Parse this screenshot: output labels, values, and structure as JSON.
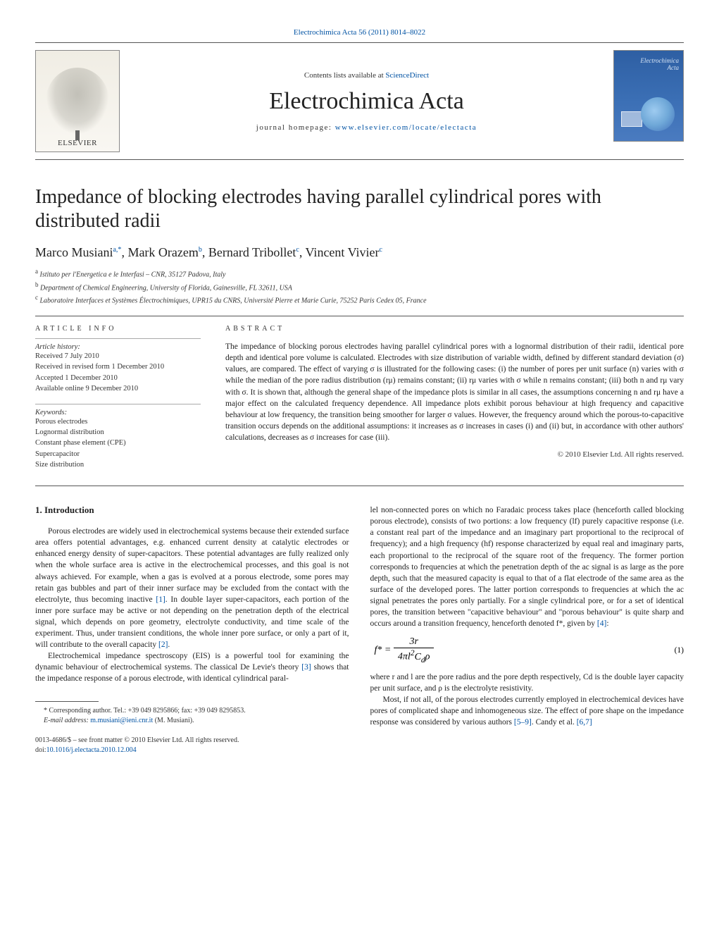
{
  "header": {
    "top_reference": "Electrochimica Acta 56 (2011) 8014–8022",
    "contents_prefix": "Contents lists available at ",
    "contents_link": "ScienceDirect",
    "journal_title": "Electrochimica Acta",
    "homepage_prefix": "journal homepage: ",
    "homepage_link": "www.elsevier.com/locate/electacta",
    "publisher_logo": "ELSEVIER",
    "cover_label1": "Electrochimica",
    "cover_label2": "Acta"
  },
  "article": {
    "title": "Impedance of blocking electrodes having parallel cylindrical pores with distributed radii",
    "authors_html": "Marco Musiani<sup>a,*</sup>, Mark Orazem<sup>b</sup>, Bernard Tribollet<sup>c</sup>, Vincent Vivier<sup>c</sup>",
    "affiliations": [
      {
        "sup": "a",
        "text": "Istituto per l'Energetica e le Interfasi – CNR, 35127 Padova, Italy"
      },
      {
        "sup": "b",
        "text": "Department of Chemical Engineering, University of Florida, Gainesville, FL 32611, USA"
      },
      {
        "sup": "c",
        "text": "Laboratoire Interfaces et Systèmes Électrochimiques, UPR15 du CNRS, Université Pierre et Marie Curie, 75252 Paris Cedex 05, France"
      }
    ]
  },
  "info": {
    "section_label": "article info",
    "history_heading": "Article history:",
    "history": [
      "Received 7 July 2010",
      "Received in revised form 1 December 2010",
      "Accepted 1 December 2010",
      "Available online 9 December 2010"
    ],
    "keywords_heading": "Keywords:",
    "keywords": [
      "Porous electrodes",
      "Lognormal distribution",
      "Constant phase element (CPE)",
      "Supercapacitor",
      "Size distribution"
    ]
  },
  "abstract": {
    "section_label": "abstract",
    "text": "The impedance of blocking porous electrodes having parallel cylindrical pores with a lognormal distribution of their radii, identical pore depth and identical pore volume is calculated. Electrodes with size distribution of variable width, defined by different standard deviation (σ) values, are compared. The effect of varying σ is illustrated for the following cases: (i) the number of pores per unit surface (n) varies with σ while the median of the pore radius distribution (rμ) remains constant; (ii) rμ varies with σ while n remains constant; (iii) both n and rμ vary with σ. It is shown that, although the general shape of the impedance plots is similar in all cases, the assumptions concerning n and rμ have a major effect on the calculated frequency dependence. All impedance plots exhibit porous behaviour at high frequency and capacitive behaviour at low frequency, the transition being smoother for larger σ values. However, the frequency around which the porous-to-capacitive transition occurs depends on the additional assumptions: it increases as σ increases in cases (i) and (ii) but, in accordance with other authors' calculations, decreases as σ increases for case (iii).",
    "copyright": "© 2010 Elsevier Ltd. All rights reserved."
  },
  "body": {
    "intro_heading": "1.  Introduction",
    "left_paragraphs": [
      "Porous electrodes are widely used in electrochemical systems because their extended surface area offers potential advantages, e.g. enhanced current density at catalytic electrodes or enhanced energy density of super-capacitors. These potential advantages are fully realized only when the whole surface area is active in the electrochemical processes, and this goal is not always achieved. For example, when a gas is evolved at a porous electrode, some pores may retain gas bubbles and part of their inner surface may be excluded from the contact with the electrolyte, thus becoming inactive [1]. In double layer super-capacitors, each portion of the inner pore surface may be active or not depending on the penetration depth of the electrical signal, which depends on pore geometry, electrolyte conductivity, and time scale of the experiment. Thus, under transient conditions, the whole inner pore surface, or only a part of it, will contribute to the overall capacity [2].",
      "Electrochemical impedance spectroscopy (EIS) is a powerful tool for examining the dynamic behaviour of electrochemical systems. The classical De Levie's theory [3] shows that the impedance response of a porous electrode, with identical cylindrical paral-"
    ],
    "right_paragraphs": [
      "lel non-connected pores on which no Faradaic process takes place (henceforth called blocking porous electrode), consists of two portions: a low frequency (lf) purely capacitive response (i.e. a constant real part of the impedance and an imaginary part proportional to the reciprocal of frequency); and a high frequency (hf) response characterized by equal real and imaginary parts, each proportional to the reciprocal of the square root of the frequency. The former portion corresponds to frequencies at which the penetration depth of the ac signal is as large as the pore depth, such that the measured capacity is equal to that of a flat electrode of the same area as the surface of the developed pores. The latter portion corresponds to frequencies at which the ac signal penetrates the pores only partially. For a single cylindrical pore, or for a set of identical pores, the transition between \"capacitive behaviour\" and \"porous behaviour\" is quite sharp and occurs around a transition frequency, henceforth denoted f*, given by [4]:"
    ],
    "equation": {
      "formula_html": "f* = 3r / (4πl²C<sub>d</sub>ρ)",
      "number": "(1)"
    },
    "right_paragraphs_after": [
      "where r and l are the pore radius and the pore depth respectively, Cd is the double layer capacity per unit surface, and ρ is the electrolyte resistivity.",
      "Most, if not all, of the porous electrodes currently employed in electrochemical devices have pores of complicated shape and inhomogeneous size. The effect of pore shape on the impedance response was considered by various authors [5–9]. Candy et al. [6,7]"
    ]
  },
  "footnote": {
    "corresp": "* Corresponding author. Tel.: +39 049 8295866; fax: +39 049 8295853.",
    "email_label": "E-mail address: ",
    "email": "m.musiani@ieni.cnr.it",
    "email_suffix": " (M. Musiani)."
  },
  "meta_footer": {
    "line1": "0013-4686/$ – see front matter © 2010 Elsevier Ltd. All rights reserved.",
    "doi_prefix": "doi:",
    "doi": "10.1016/j.electacta.2010.12.004"
  },
  "colors": {
    "link": "#0052a3",
    "text": "#222222",
    "rule": "#555555"
  }
}
